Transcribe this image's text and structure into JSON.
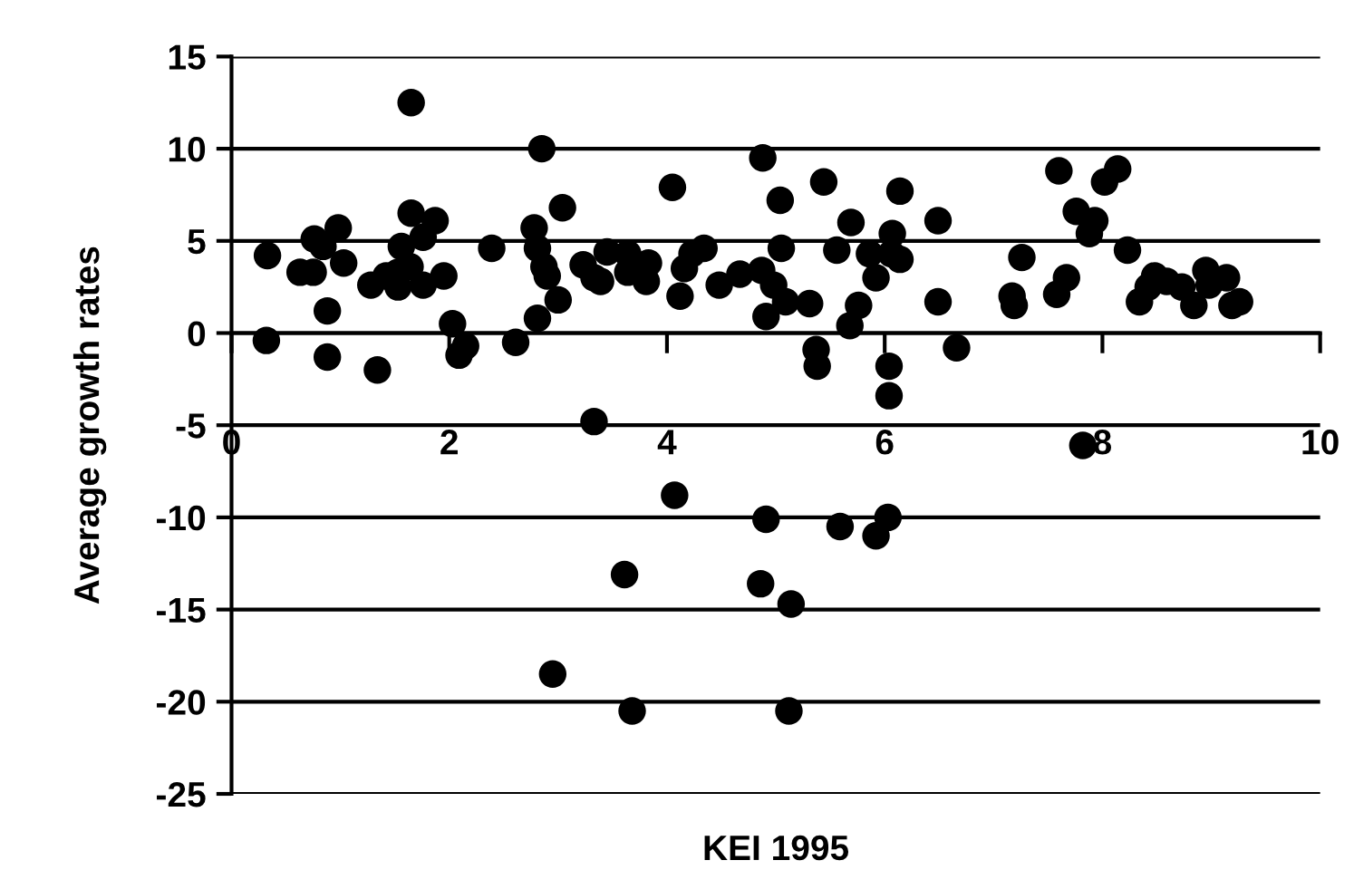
{
  "chart_data": {
    "type": "scatter",
    "xlabel": "KEI 1995",
    "ylabel": "Average growth rates",
    "xlim": [
      0,
      10
    ],
    "ylim": [
      -25,
      15
    ],
    "xticks": [
      0,
      2,
      4,
      6,
      8,
      10
    ],
    "yticks": [
      -25,
      -20,
      -15,
      -10,
      -5,
      0,
      5,
      10,
      15
    ],
    "grid": "y",
    "marker": "circle",
    "legend": false,
    "series": [
      {
        "color": "#000000",
        "x": [
          1.65,
          2.85,
          3.04,
          2.78,
          2.81,
          2.39,
          0.33,
          0.63,
          0.76,
          0.98,
          0.84,
          1.03,
          0.75,
          0.88,
          0.32,
          0.88,
          1.34,
          1.65,
          1.87,
          1.76,
          1.56,
          1.28,
          1.42,
          1.53,
          1.64,
          1.76,
          1.95,
          1.53,
          2.03,
          2.09,
          2.15,
          2.61,
          2.81,
          3.0,
          2.9,
          2.87,
          3.23,
          3.33,
          3.33,
          4.88,
          4.05,
          5.04,
          5.44,
          6.14,
          5.69,
          6.49,
          6.07,
          5.05,
          5.56,
          5.86,
          6.14,
          6.06,
          5.92,
          6.49,
          5.76,
          5.68,
          5.31,
          5.09,
          4.91,
          4.98,
          4.87,
          4.67,
          4.48,
          4.34,
          4.23,
          4.16,
          4.12,
          3.83,
          3.81,
          3.64,
          3.64,
          3.45,
          3.39,
          5.37,
          5.38,
          6.04,
          6.04,
          6.66,
          7.6,
          8.14,
          8.02,
          7.76,
          7.93,
          7.88,
          8.23,
          7.26,
          7.67,
          7.58,
          7.17,
          7.19,
          8.34,
          8.48,
          8.42,
          8.59,
          8.73,
          8.84,
          8.95,
          8.98,
          9.14,
          9.19,
          9.26,
          7.82,
          4.07,
          4.91,
          5.59,
          5.92,
          6.03,
          3.61,
          4.86,
          5.14,
          2.95,
          3.68,
          5.12
        ],
        "values": [
          12.5,
          10,
          6.8,
          5.7,
          4.6,
          4.6,
          4.2,
          3.3,
          5.1,
          5.7,
          4.7,
          3.8,
          3.3,
          1.2,
          -0.4,
          -1.3,
          -2.0,
          6.5,
          6.1,
          5.2,
          4.7,
          2.6,
          3.1,
          2.5,
          3.6,
          2.6,
          3.1,
          3.3,
          0.5,
          -1.2,
          -0.7,
          -0.5,
          0.8,
          1.8,
          3.1,
          3.6,
          3.7,
          3.0,
          -4.8,
          9.5,
          7.9,
          7.2,
          8.2,
          7.7,
          6.0,
          6.1,
          5.4,
          4.6,
          4.5,
          4.3,
          4.0,
          4.3,
          3.0,
          1.7,
          1.5,
          0.4,
          1.6,
          1.7,
          0.9,
          2.6,
          3.4,
          3.2,
          2.6,
          4.6,
          4.3,
          3.5,
          2.0,
          3.8,
          2.8,
          4.3,
          3.3,
          4.4,
          2.8,
          -0.9,
          -1.8,
          -1.8,
          -3.4,
          -0.8,
          8.8,
          8.9,
          8.2,
          6.6,
          6.1,
          5.4,
          4.5,
          4.1,
          3.0,
          2.1,
          2.0,
          1.5,
          1.7,
          3.1,
          2.5,
          2.8,
          2.5,
          1.5,
          3.4,
          2.6,
          3.0,
          1.5,
          1.7,
          -6.1,
          -8.8,
          -10.1,
          -10.5,
          -11.0,
          -10.0,
          -13.1,
          -13.6,
          -14.7,
          -18.5,
          -20.5,
          -20.5
        ]
      }
    ]
  }
}
